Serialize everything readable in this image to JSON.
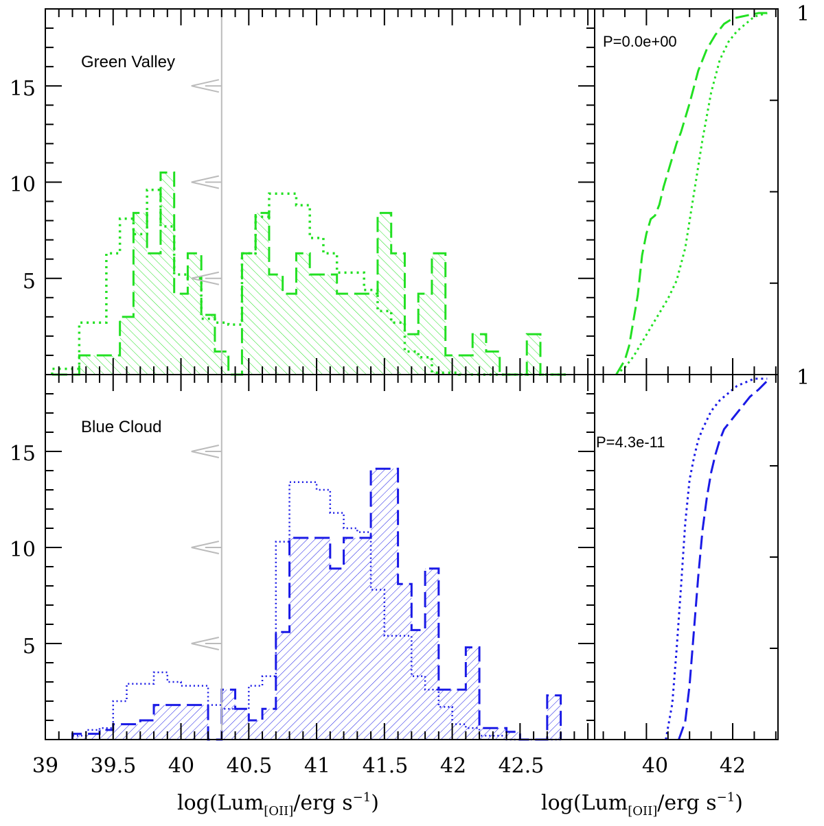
{
  "chart_data": [
    {
      "type": "histogram",
      "panel": "Green Valley",
      "label": "Green Valley",
      "color": "#22e022",
      "xlabel": "log(Lum[OII]/erg s-1)",
      "xlim": [
        39.0,
        43.05
      ],
      "ylim": [
        0,
        19
      ],
      "bin_edges": [
        39.05,
        39.15,
        39.25,
        39.35,
        39.45,
        39.55,
        39.65,
        39.75,
        39.85,
        39.95,
        40.05,
        40.15,
        40.25,
        40.35,
        40.45,
        40.55,
        40.65,
        40.75,
        40.85,
        40.95,
        41.05,
        41.15,
        41.25,
        41.35,
        41.45,
        41.55,
        41.65,
        41.75,
        41.85,
        41.95,
        42.05,
        42.15,
        42.25,
        42.35,
        42.45,
        42.55,
        42.65,
        42.75,
        42.85
      ],
      "series": [
        {
          "name": "hatched (dashed)",
          "style": "dashed-hatched",
          "values": [
            0,
            0,
            1,
            1,
            1,
            3,
            8.4,
            6.3,
            10.5,
            4.2,
            6.3,
            3.1,
            1.2,
            0,
            6.3,
            8.4,
            5.2,
            4.2,
            6.3,
            5.2,
            5.2,
            4.2,
            4.2,
            4.2,
            8.4,
            6.3,
            2.1,
            4.2,
            6.3,
            1,
            1,
            2.1,
            1.2,
            0,
            0,
            2.1,
            0,
            0
          ]
        },
        {
          "name": "dotted",
          "style": "dotted",
          "values": [
            0.3,
            0.3,
            2.7,
            2.7,
            6.3,
            8.1,
            7.3,
            9.6,
            7.7,
            5.2,
            5.0,
            2.9,
            2.7,
            2.6,
            6.3,
            8.2,
            9.4,
            9.4,
            8.8,
            7.1,
            6.3,
            5.3,
            5.3,
            4.4,
            3.3,
            2.7,
            1.2,
            0.9,
            0.1,
            0.1,
            0,
            0,
            0,
            0,
            0,
            0,
            0,
            0
          ]
        }
      ],
      "cdf": {
        "xlim": [
          38.8,
          43.05
        ],
        "ylim": [
          0,
          1
        ],
        "x_ticks": [
          40,
          42
        ],
        "ytop_label": "1",
        "p_label": "P=0.0e+00",
        "series": [
          {
            "name": "dashed",
            "x": [
              39.3,
              39.5,
              39.6,
              39.7,
              39.8,
              39.9,
              40.0,
              40.1,
              40.2,
              40.3,
              40.4,
              40.5,
              40.6,
              40.7,
              40.8,
              40.9,
              41.0,
              41.2,
              41.4,
              41.6,
              41.8,
              42.0,
              42.2,
              42.4,
              42.6,
              42.8
            ],
            "y": [
              0,
              0.04,
              0.08,
              0.15,
              0.22,
              0.33,
              0.39,
              0.43,
              0.44,
              0.47,
              0.52,
              0.56,
              0.6,
              0.64,
              0.67,
              0.71,
              0.75,
              0.84,
              0.9,
              0.94,
              0.97,
              0.985,
              0.99,
              0.995,
              1,
              1
            ]
          },
          {
            "name": "dotted",
            "x": [
              39.3,
              39.5,
              39.7,
              39.9,
              40.1,
              40.3,
              40.5,
              40.7,
              40.9,
              41.1,
              41.3,
              41.5,
              41.7,
              41.9,
              42.1,
              42.3,
              42.5,
              42.8
            ],
            "y": [
              0,
              0.02,
              0.05,
              0.09,
              0.13,
              0.17,
              0.21,
              0.26,
              0.35,
              0.5,
              0.65,
              0.78,
              0.87,
              0.92,
              0.95,
              0.97,
              0.99,
              1
            ]
          }
        ]
      }
    },
    {
      "type": "histogram",
      "panel": "Blue Cloud",
      "label": "Blue Cloud",
      "color": "#1a1ae6",
      "xlabel": "log(Lum[OII]/erg s-1)",
      "xlim": [
        39.0,
        43.05
      ],
      "ylim": [
        0,
        19
      ],
      "bin_edges": [
        39.2,
        39.3,
        39.4,
        39.5,
        39.6,
        39.7,
        39.8,
        39.9,
        40.0,
        40.1,
        40.2,
        40.3,
        40.4,
        40.5,
        40.6,
        40.7,
        40.8,
        40.9,
        41.0,
        41.1,
        41.2,
        41.3,
        41.4,
        41.5,
        41.6,
        41.7,
        41.8,
        41.9,
        42.0,
        42.1,
        42.2,
        42.3,
        42.4,
        42.5,
        42.6,
        42.7,
        42.8
      ],
      "series": [
        {
          "name": "hatched (dashed)",
          "style": "dashed-hatched",
          "values": [
            0.3,
            0.3,
            0.5,
            0.8,
            0.8,
            1.0,
            1.8,
            1.8,
            1.8,
            1.8,
            0,
            2.6,
            1.6,
            1.0,
            1.6,
            5.6,
            10.5,
            10.5,
            10.5,
            8.9,
            10.5,
            10.5,
            14.1,
            14.1,
            8.1,
            5.7,
            8.9,
            2.6,
            2.6,
            4.8,
            0.6,
            0.6,
            0.4,
            0,
            0,
            2.3
          ]
        },
        {
          "name": "dotted",
          "style": "dotted",
          "values": [
            0.2,
            0.5,
            0.6,
            2.0,
            2.9,
            2.9,
            3.5,
            3.0,
            2.8,
            2.8,
            1.8,
            1.6,
            1.6,
            2.8,
            3.3,
            10.3,
            13.4,
            13.4,
            13.0,
            11.8,
            11.0,
            10.8,
            7.8,
            5.4,
            5.4,
            3.3,
            2.6,
            1.7,
            0.8,
            0.6,
            0.2,
            0.2,
            0,
            0,
            0,
            0
          ]
        }
      ],
      "cdf": {
        "xlim": [
          38.8,
          43.05
        ],
        "ylim": [
          0,
          1
        ],
        "x_ticks": [
          40,
          42
        ],
        "ytop_label": "1",
        "p_label": "P=4.3e-11",
        "series": [
          {
            "name": "dashed",
            "x": [
              40.75,
              40.9,
              41.0,
              41.1,
              41.2,
              41.3,
              41.4,
              41.5,
              41.6,
              41.7,
              41.8,
              42.0,
              42.2,
              42.4,
              42.6,
              42.85
            ],
            "y": [
              0,
              0.05,
              0.15,
              0.3,
              0.45,
              0.58,
              0.67,
              0.74,
              0.79,
              0.83,
              0.86,
              0.89,
              0.92,
              0.95,
              0.97,
              1
            ]
          },
          {
            "name": "dotted",
            "x": [
              40.45,
              40.6,
              40.7,
              40.8,
              40.9,
              41.0,
              41.1,
              41.2,
              41.3,
              41.5,
              41.7,
              41.9,
              42.1,
              42.3,
              42.5,
              42.8
            ],
            "y": [
              0,
              0.1,
              0.25,
              0.42,
              0.6,
              0.72,
              0.78,
              0.83,
              0.86,
              0.91,
              0.94,
              0.96,
              0.98,
              0.99,
              1,
              1
            ]
          }
        ]
      }
    }
  ],
  "axes": {
    "x_tick_labels": [
      "39",
      "39.5",
      "40",
      "40.5",
      "41",
      "41.5",
      "42",
      "42.5"
    ],
    "y_tick_labels": [
      "5",
      "10",
      "15"
    ],
    "xlabel_main": "log(Lum",
    "xlabel_sub": "[OII]",
    "xlabel_rest": "/erg s",
    "xlabel_sup": "−1",
    "xlabel_end": ")",
    "cdf_x_tick_labels": [
      "40",
      "42"
    ],
    "threshold_x": 40.3,
    "limit_arrows_y": [
      5,
      10,
      15
    ],
    "threshold_color": "#bbbbbb"
  }
}
